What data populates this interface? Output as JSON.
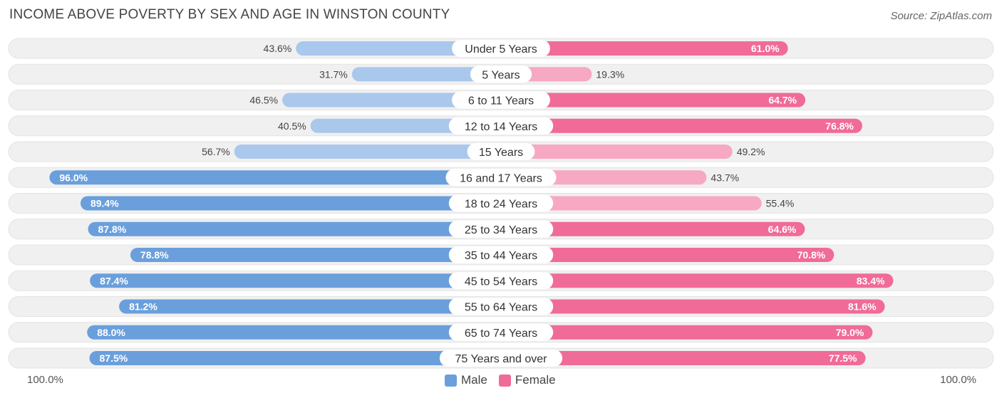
{
  "title": "INCOME ABOVE POVERTY BY SEX AND AGE IN WINSTON COUNTY",
  "source": "Source: ZipAtlas.com",
  "colors": {
    "male_light": "#a9c8ec",
    "male_dark": "#6a9fdc",
    "female_light": "#f7a8c2",
    "female_dark": "#f06b97",
    "track": "#f0f0f0"
  },
  "chart_data": {
    "type": "bar",
    "orientation": "horizontal-diverging",
    "title": "INCOME ABOVE POVERTY BY SEX AND AGE IN WINSTON COUNTY",
    "categories": [
      "Under 5 Years",
      "5 Years",
      "6 to 11 Years",
      "12 to 14 Years",
      "15 Years",
      "16 and 17 Years",
      "18 to 24 Years",
      "25 to 34 Years",
      "35 to 44 Years",
      "45 to 54 Years",
      "55 to 64 Years",
      "65 to 74 Years",
      "75 Years and over"
    ],
    "series": [
      {
        "name": "Male",
        "values": [
          43.6,
          31.7,
          46.5,
          40.5,
          56.7,
          96.0,
          89.4,
          87.8,
          78.8,
          87.4,
          81.2,
          88.0,
          87.5
        ]
      },
      {
        "name": "Female",
        "values": [
          61.0,
          19.3,
          64.7,
          76.8,
          49.2,
          43.7,
          55.4,
          64.6,
          70.8,
          83.4,
          81.6,
          79.0,
          77.5
        ]
      }
    ],
    "labels_male": [
      "43.6%",
      "31.7%",
      "46.5%",
      "40.5%",
      "56.7%",
      "96.0%",
      "89.4%",
      "87.8%",
      "78.8%",
      "87.4%",
      "81.2%",
      "88.0%",
      "87.5%"
    ],
    "labels_female": [
      "61.0%",
      "19.3%",
      "64.7%",
      "76.8%",
      "49.2%",
      "43.7%",
      "55.4%",
      "64.6%",
      "70.8%",
      "83.4%",
      "81.6%",
      "79.0%",
      "77.5%"
    ],
    "xlim": [
      0,
      100
    ],
    "axis_left_label": "100.0%",
    "axis_right_label": "100.0%",
    "legend": [
      "Male",
      "Female"
    ],
    "legend_position": "bottom-center"
  }
}
